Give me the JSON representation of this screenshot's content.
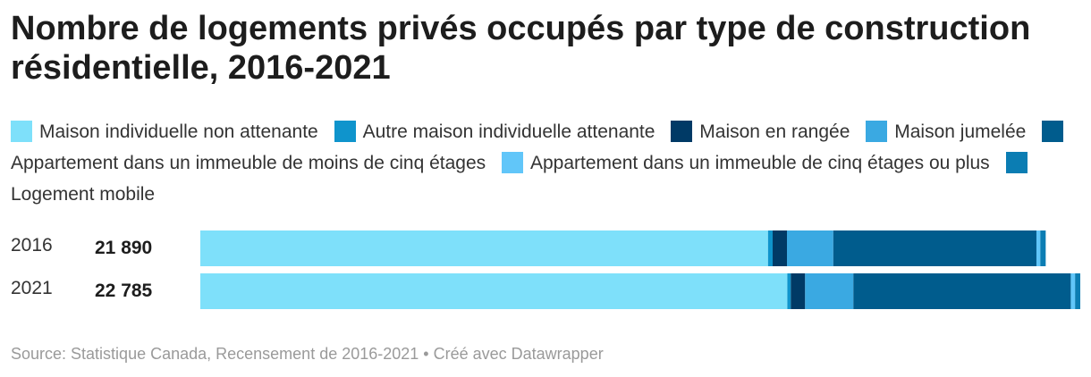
{
  "title": "Nombre de logements privés occupés par type de construction résidentielle, 2016-2021",
  "legend": [
    {
      "label": "Maison individuelle non attenante",
      "color": "#7ee0fa"
    },
    {
      "label": "Autre maison individuelle attenante",
      "color": "#0f94cc"
    },
    {
      "label": "Maison en rangée",
      "color": "#003a66"
    },
    {
      "label": "Maison jumelée",
      "color": "#3aa9e2"
    },
    {
      "label": "Appartement dans un immeuble de moins de cinq étages",
      "color": "#005c8d"
    },
    {
      "label": "Appartement dans un immeuble de cinq étages ou plus",
      "color": "#61c6f9"
    },
    {
      "label": "Logement mobile",
      "color": "#0b7db3"
    }
  ],
  "rows": [
    {
      "year": "2016",
      "total": "21 890"
    },
    {
      "year": "2021",
      "total": "22 785"
    }
  ],
  "source": "Source: Statistique Canada, Recensement de 2016-2021 • Créé avec Datawrapper",
  "chart_data": {
    "type": "bar",
    "stacked": true,
    "orientation": "horizontal",
    "categories": [
      "2016",
      "2021"
    ],
    "totals": [
      21890,
      22785
    ],
    "series": [
      {
        "name": "Maison individuelle non attenante",
        "values": [
          14700,
          15200
        ]
      },
      {
        "name": "Autre maison individuelle attenante",
        "values": [
          120,
          90
        ]
      },
      {
        "name": "Maison en rangée",
        "values": [
          370,
          370
        ]
      },
      {
        "name": "Maison jumelée",
        "values": [
          1200,
          1250
        ]
      },
      {
        "name": "Appartement dans un immeuble de moins de cinq étages",
        "values": [
          5260,
          5630
        ]
      },
      {
        "name": "Appartement dans un immeuble de cinq étages ou plus",
        "values": [
          100,
          110
        ]
      },
      {
        "name": "Logement mobile",
        "values": [
          140,
          135
        ]
      }
    ]
  }
}
